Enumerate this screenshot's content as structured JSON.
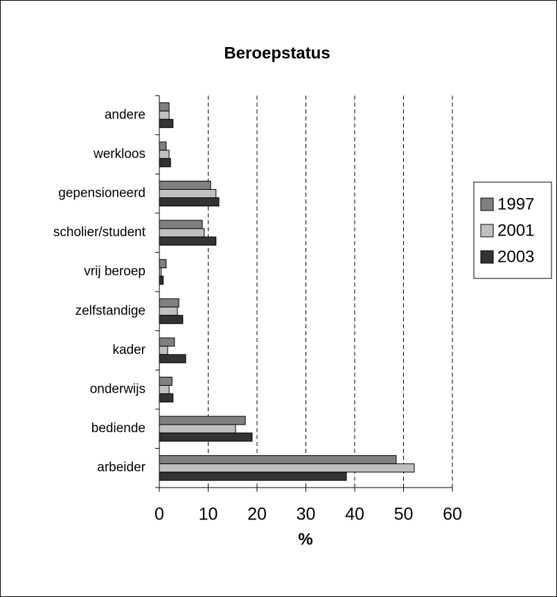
{
  "chart_data": {
    "type": "barh",
    "title": "Beroepstatus",
    "xlabel": "%",
    "categories": [
      "andere",
      "werkloos",
      "gepensioneerd",
      "scholier/student",
      "vrij beroep",
      "zelfstandige",
      "kader",
      "onderwijs",
      "bediende",
      "arbeider"
    ],
    "series": [
      {
        "name": "1997",
        "color": "#808080",
        "values": [
          2.0,
          1.4,
          10.5,
          8.8,
          1.4,
          4.0,
          3.1,
          2.6,
          17.6,
          48.5
        ]
      },
      {
        "name": "2001",
        "color": "#c0c0c0",
        "values": [
          2.0,
          2.0,
          11.6,
          9.2,
          0.4,
          3.7,
          1.7,
          2.0,
          15.6,
          52.2
        ]
      },
      {
        "name": "2003",
        "color": "#333333",
        "values": [
          2.8,
          2.3,
          12.2,
          11.6,
          0.8,
          4.8,
          5.4,
          2.8,
          19.0,
          38.3
        ]
      }
    ],
    "xlim": [
      0,
      60
    ],
    "xticks": [
      0,
      10,
      20,
      30,
      40,
      50,
      60
    ],
    "grid": true,
    "legend": "right"
  }
}
